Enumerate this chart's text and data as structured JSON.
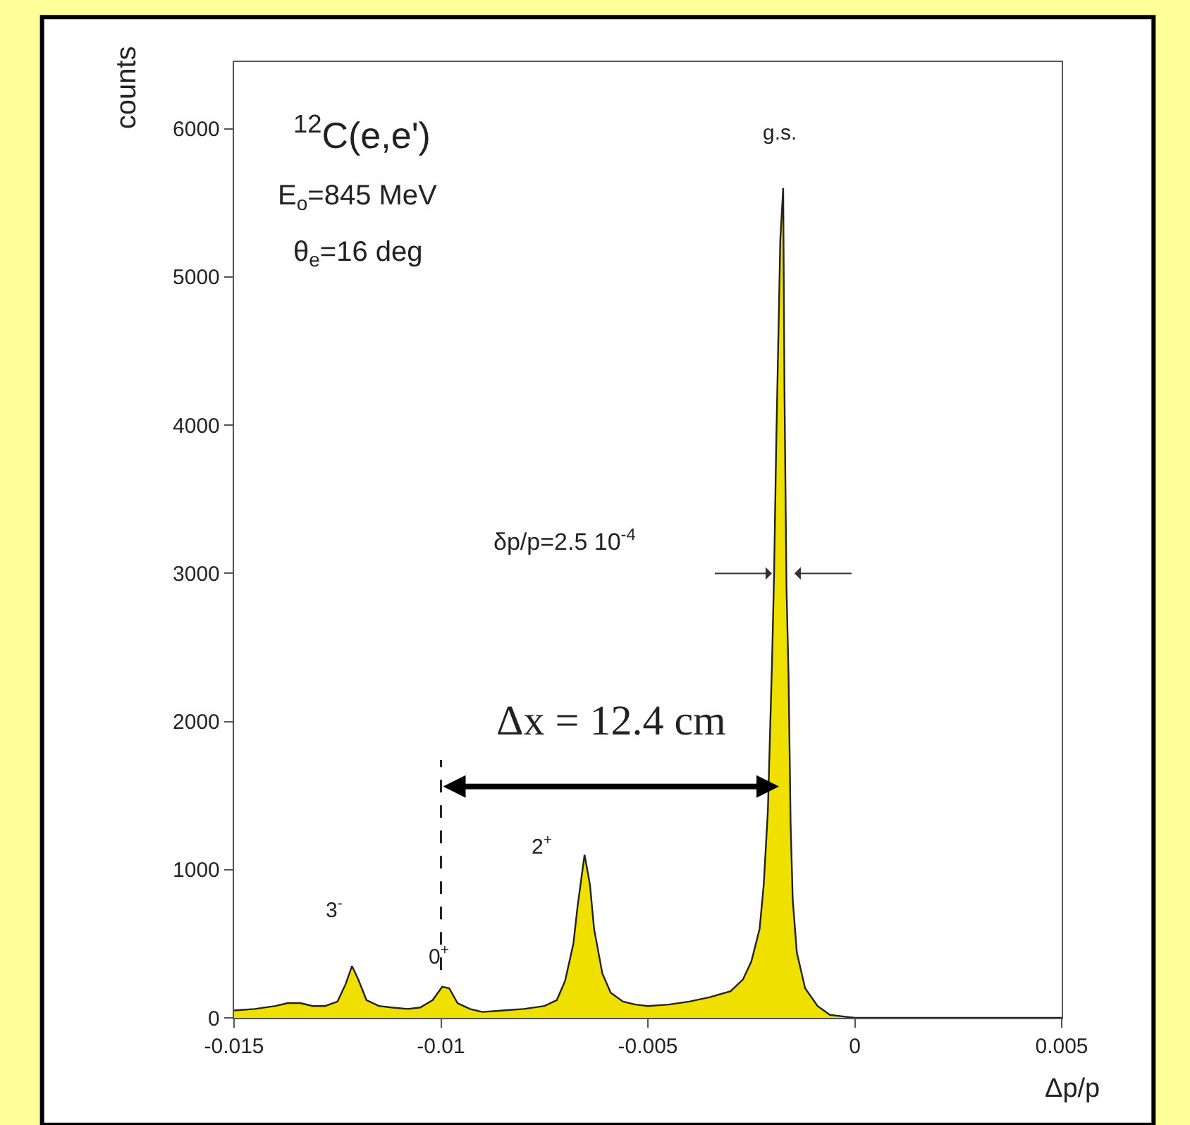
{
  "chart_data": {
    "type": "area",
    "xlabel": "Δp/p",
    "ylabel": "counts",
    "xlim": [
      -0.015,
      0.005
    ],
    "xticks": [
      -0.015,
      -0.01,
      -0.005,
      0,
      0.005
    ],
    "ylim": [
      0,
      6450
    ],
    "yticks": [
      0,
      1000,
      2000,
      3000,
      4000,
      5000,
      6000
    ],
    "series": [
      {
        "color": "#f0e000",
        "x": [
          -0.015,
          -0.0145,
          -0.014,
          -0.0137,
          -0.0134,
          -0.0131,
          -0.0128,
          -0.0125,
          -0.0123,
          -0.01215,
          -0.012,
          -0.0118,
          -0.0115,
          -0.0112,
          -0.0108,
          -0.0105,
          -0.0102,
          -0.00997,
          -0.0098,
          -0.0096,
          -0.0093,
          -0.009,
          -0.0085,
          -0.008,
          -0.0075,
          -0.0072,
          -0.007,
          -0.0068,
          -0.0067,
          -0.00653,
          -0.0064,
          -0.0063,
          -0.0061,
          -0.0059,
          -0.0056,
          -0.0053,
          -0.005,
          -0.0045,
          -0.004,
          -0.0035,
          -0.003,
          -0.0027,
          -0.0025,
          -0.0023,
          -0.0022,
          -0.0021,
          -0.002,
          -0.00195,
          -0.0019,
          -0.0018,
          -0.00173,
          -0.0017,
          -0.00165,
          -0.0016,
          -0.00155,
          -0.0015,
          -0.0014,
          -0.0012,
          -0.0009,
          -0.0006,
          -0.0003,
          0,
          0.005
        ],
        "values": [
          50,
          60,
          80,
          100,
          100,
          80,
          80,
          110,
          230,
          350,
          260,
          120,
          80,
          70,
          60,
          70,
          120,
          210,
          200,
          100,
          60,
          40,
          50,
          60,
          80,
          120,
          250,
          500,
          750,
          1100,
          900,
          600,
          300,
          170,
          110,
          90,
          80,
          90,
          110,
          140,
          180,
          260,
          380,
          600,
          900,
          1400,
          2400,
          3000,
          3850,
          5250,
          5600,
          4250,
          2900,
          2300,
          1300,
          800,
          440,
          200,
          80,
          20,
          10,
          0,
          0
        ]
      }
    ],
    "ref_lines": [
      {
        "axis": "x",
        "value": -0.01,
        "line_style": "dashed",
        "color": "#000000"
      }
    ],
    "annotations": [
      "$^{12}$C(e,e')",
      "E$_{o}$=845 MeV",
      "θ$_{e}$=16 deg",
      "g.s.",
      "δp/p=2.5 10$^{-4}$",
      "Δx = 12.4 cm",
      "3$^{-}$",
      "0$^{+}$",
      "2$^{+}$"
    ]
  }
}
